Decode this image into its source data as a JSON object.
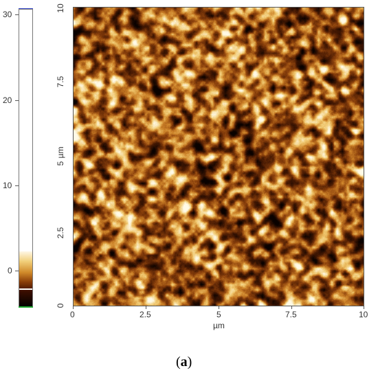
{
  "colorbar": {
    "ticks": [
      "30",
      "20",
      "10",
      "0"
    ],
    "top_marker_color": "#3344cc",
    "bottom_marker_color": "#22aa33",
    "gradient_colors": [
      "#fff7e6",
      "#f1cf7a",
      "#d08a2a",
      "#8a3d08",
      "#3a0e00",
      "#000000"
    ]
  },
  "image": {
    "x_ticks": [
      "0",
      "2.5",
      "5",
      "7.5",
      "10"
    ],
    "y_ticks": [
      "0",
      "2.5",
      "5",
      "7.5",
      "10"
    ],
    "x_label": "µm",
    "y_label": "µm"
  },
  "caption": {
    "open": "(",
    "letter": "a",
    "close": ")"
  }
}
